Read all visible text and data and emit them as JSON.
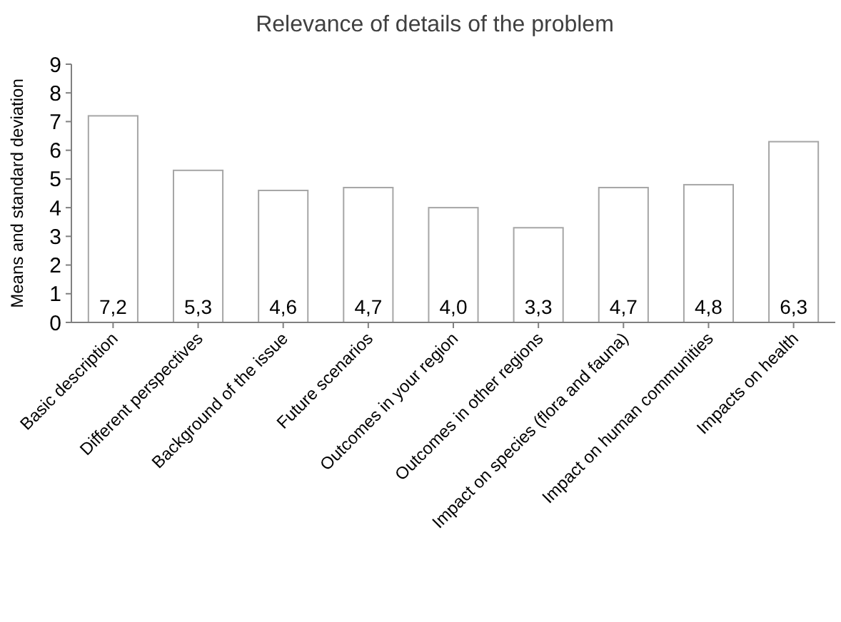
{
  "chart_data": {
    "type": "bar",
    "title": "Relevance of details of the problem",
    "ylabel": "Means and standard deviation",
    "categories": [
      "Basic description",
      "Different perspectives",
      "Background of the issue",
      "Future scenarios",
      "Outcomes in your region",
      "Outcomes in other regions",
      "Impact on species (flora and fauna)",
      "Impact on human communities",
      "Impacts on health"
    ],
    "values": [
      7.2,
      5.3,
      4.6,
      4.7,
      4.0,
      3.3,
      4.7,
      4.8,
      6.3
    ],
    "value_labels": [
      "7,2",
      "5,3",
      "4,6",
      "4,7",
      "4,0",
      "3,3",
      "4,7",
      "4,8",
      "6,3"
    ],
    "color": "#ffffff",
    "ylim": [
      0,
      9
    ],
    "yticks": [
      0,
      1,
      2,
      3,
      4,
      5,
      6,
      7,
      8,
      9
    ],
    "grid": false
  }
}
